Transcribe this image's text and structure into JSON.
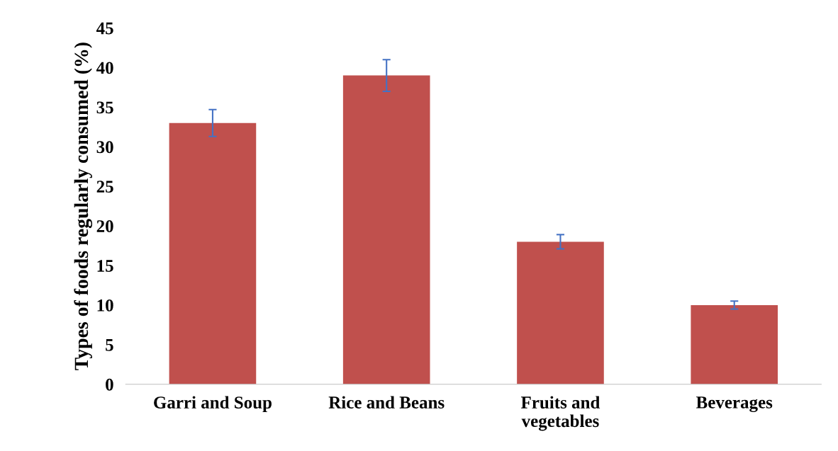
{
  "chart_data": {
    "type": "bar",
    "ylabel": "Types of foods regularly consumed (%)",
    "categories": [
      "Garri and Soup",
      "Rice and Beans",
      "Fruits and\nvegetables",
      "Beverages"
    ],
    "values": [
      33,
      39,
      18,
      10
    ],
    "errors": [
      1.7,
      2.0,
      0.9,
      0.5
    ],
    "color": "#c0504d",
    "ylim": [
      0,
      45
    ],
    "yticks": [
      0,
      5,
      10,
      15,
      20,
      25,
      30,
      35,
      40,
      45
    ],
    "grid": false,
    "legend": false
  }
}
